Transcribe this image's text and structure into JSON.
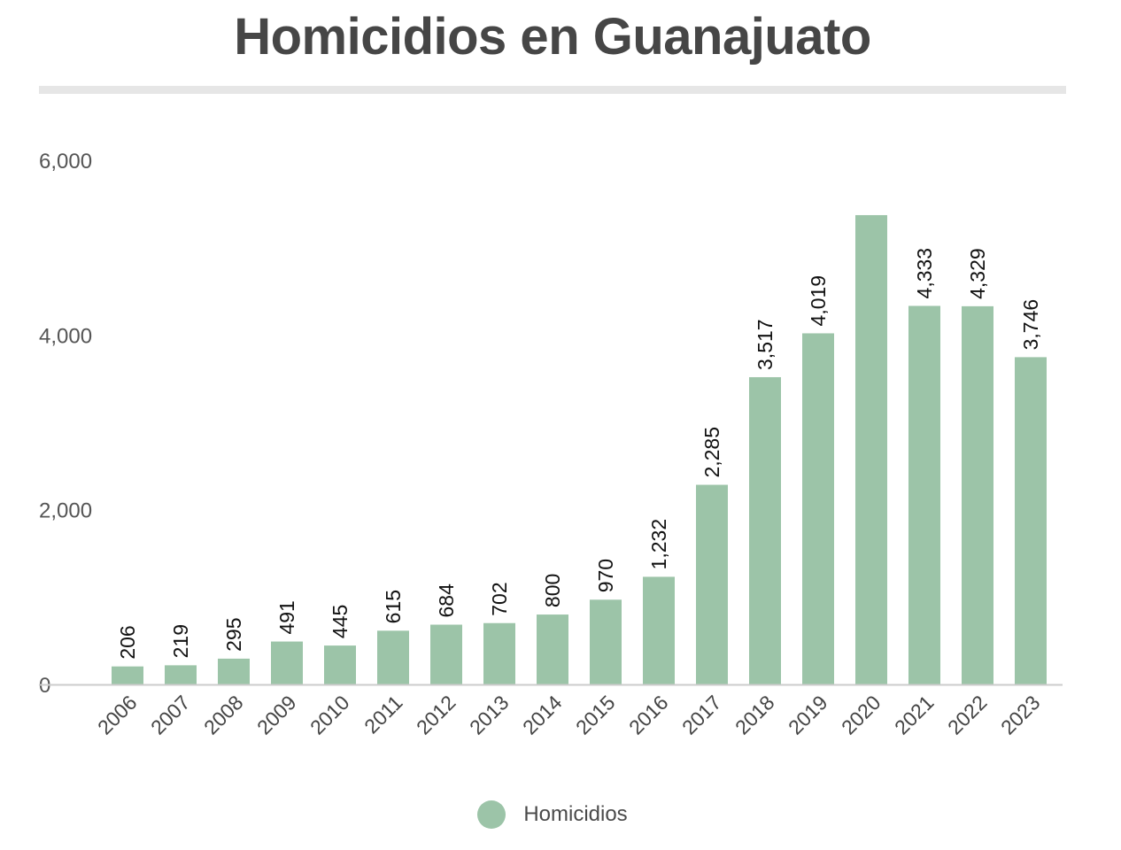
{
  "colors": {
    "bar": "#9cc4a8",
    "axis": "#cccccc",
    "title_rule": "#e6e6e6"
  },
  "chart_data": {
    "type": "bar",
    "title": "Homicidios en Guanajuato",
    "xlabel": "",
    "ylabel": "",
    "ylim": [
      0,
      6000
    ],
    "yticks": [
      0,
      2000,
      4000,
      6000
    ],
    "ytick_labels": [
      "0",
      "2,000",
      "4,000",
      "6,000"
    ],
    "grid": false,
    "legend_position": "bottom-center",
    "categories": [
      "2006",
      "2007",
      "2008",
      "2009",
      "2010",
      "2011",
      "2012",
      "2013",
      "2014",
      "2015",
      "2016",
      "2017",
      "2018",
      "2019",
      "2020",
      "2021",
      "2022",
      "2023"
    ],
    "series": [
      {
        "name": "Homicidios",
        "values": [
          206,
          219,
          295,
          491,
          445,
          615,
          684,
          702,
          800,
          970,
          1232,
          2285,
          3517,
          4019,
          5372,
          4333,
          4329,
          3746
        ],
        "labels": [
          "206",
          "219",
          "295",
          "491",
          "445",
          "615",
          "684",
          "702",
          "800",
          "970",
          "1,232",
          "2,285",
          "3,517",
          "4,019",
          "",
          "4,333",
          "4,329",
          "3,746"
        ]
      }
    ]
  }
}
